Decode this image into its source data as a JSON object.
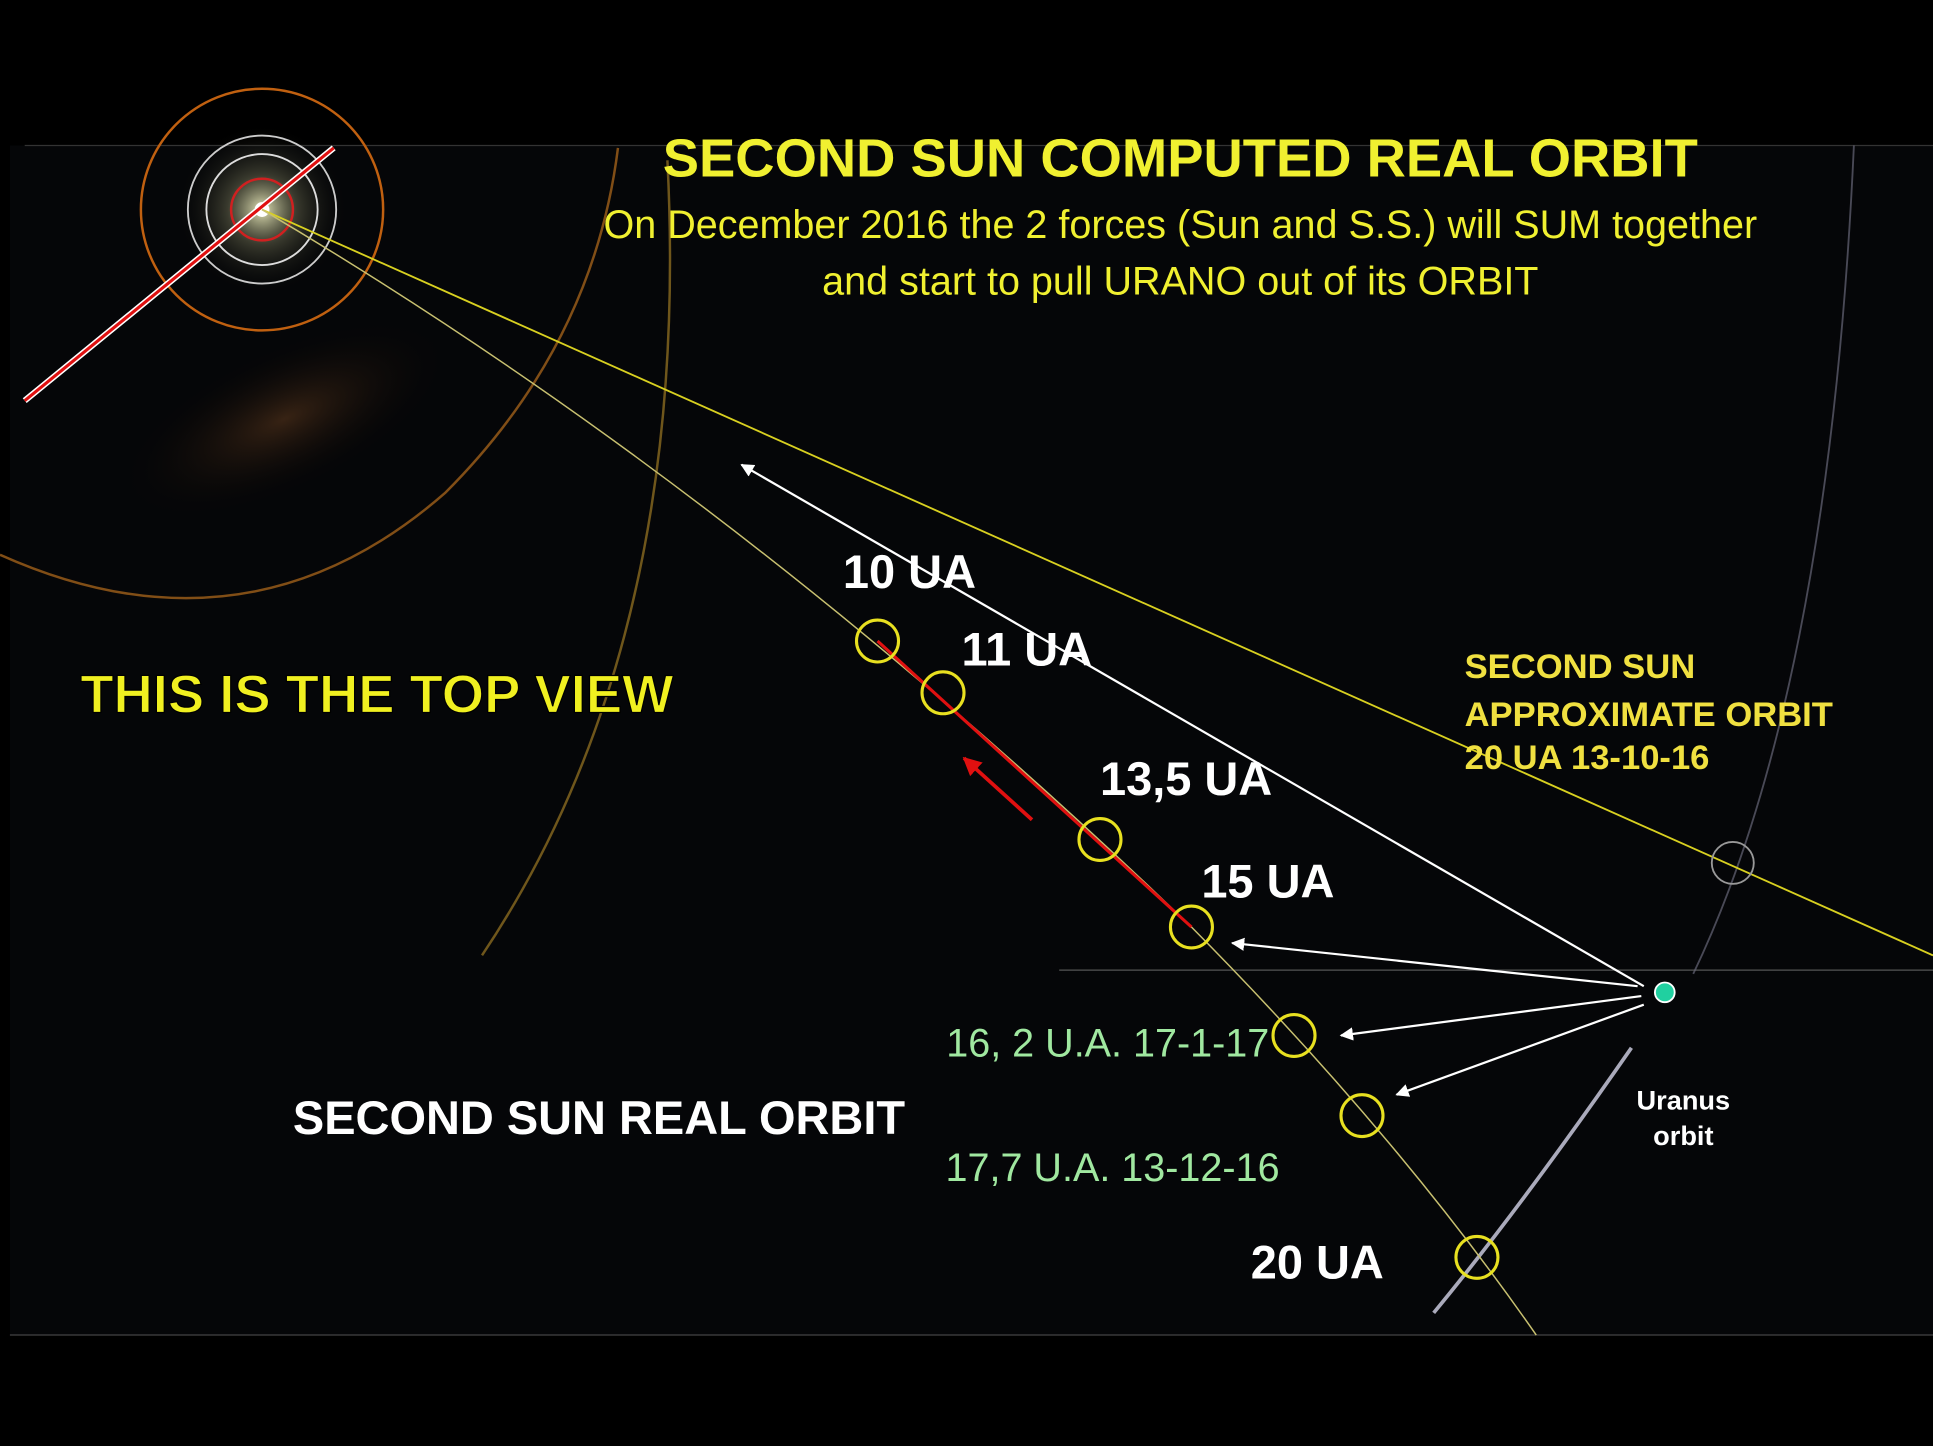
{
  "header": {
    "title": "SECOND SUN COMPUTED REAL ORBIT",
    "subtitle": [
      "On December 2016 the 2 forces (Sun and S.S.) will SUM together",
      "and start to pull URANO out of its ORBIT"
    ]
  },
  "labels": {
    "top_view": "THIS IS THE TOP VIEW",
    "real_orbit": "SECOND SUN REAL ORBIT",
    "approximate_orbit": [
      "SECOND SUN",
      "APPROXIMATE ORBIT",
      "20 UA 13-10-16"
    ],
    "uranus_orbit": [
      "Uranus",
      "orbit"
    ]
  },
  "markers": [
    "10 UA",
    "11 UA",
    "13,5 UA",
    "15 UA",
    "16, 2 U.A. 17-1-17",
    "17,7 U.A. 13-12-16",
    "20 UA"
  ]
}
